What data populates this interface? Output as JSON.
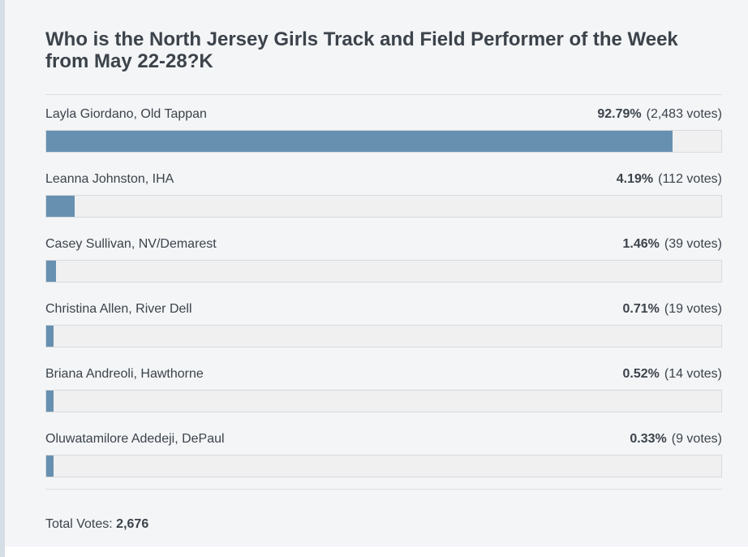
{
  "poll": {
    "question": "Who is the North Jersey Girls Track and Field Performer of the Week from May 22-28?K",
    "answers": [
      {
        "label": "Layla Giordano, Old Tappan",
        "percent_text": "92.79%",
        "votes_text": "(2,483 votes)",
        "fraction": 0.9279
      },
      {
        "label": "Leanna Johnston, IHA",
        "percent_text": "4.19%",
        "votes_text": "(112 votes)",
        "fraction": 0.0419
      },
      {
        "label": "Casey Sullivan, NV/Demarest",
        "percent_text": "1.46%",
        "votes_text": "(39 votes)",
        "fraction": 0.0146
      },
      {
        "label": "Christina Allen, River Dell",
        "percent_text": "0.71%",
        "votes_text": "(19 votes)",
        "fraction": 0.0071
      },
      {
        "label": "Briana Andreoli, Hawthorne",
        "percent_text": "0.52%",
        "votes_text": "(14 votes)",
        "fraction": 0.0052
      },
      {
        "label": "Oluwatamilore Adedeji, DePaul",
        "percent_text": "0.33%",
        "votes_text": "(9 votes)",
        "fraction": 0.0033
      }
    ],
    "total_label": "Total Votes:",
    "total_value": "2,676"
  },
  "colors": {
    "bar_fill": "#6790b0",
    "bar_track": "#f0f0f1",
    "card_background": "#f3f5f7"
  }
}
